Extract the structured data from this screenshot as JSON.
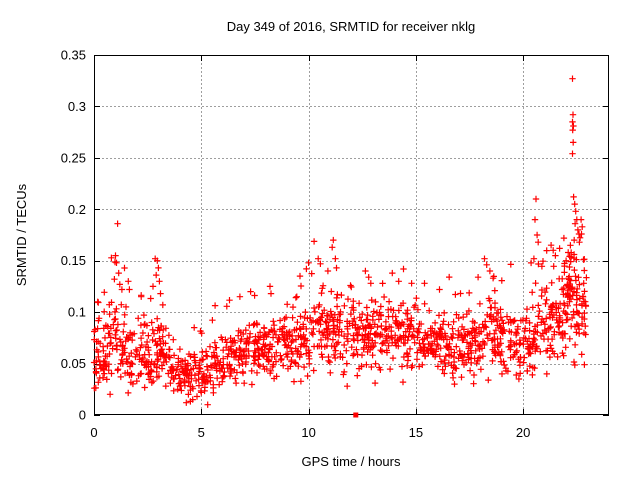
{
  "chart_data": {
    "type": "scatter",
    "title": "Day 349 of 2016, SRMTID for receiver nklg",
    "xlabel": "GPS time / hours",
    "ylabel": "SRMTID / TECUs",
    "xlim": [
      0,
      24
    ],
    "ylim": [
      0,
      0.35
    ],
    "xtick_values": [
      0,
      5,
      10,
      15,
      20
    ],
    "xtick_labels": [
      "0",
      "5",
      "10",
      "15",
      "20"
    ],
    "ytick_values": [
      0,
      0.05,
      0.1,
      0.15,
      0.2,
      0.25,
      0.3,
      0.35
    ],
    "ytick_labels": [
      "0",
      "0.05",
      "0.1",
      "0.15",
      "0.2",
      "0.25",
      "0.3",
      "0.35"
    ],
    "grid": true,
    "grid_style": "dashed",
    "legend": "none",
    "marker": {
      "shape": "plus",
      "color": "#ff0000",
      "size": 7
    },
    "series": [
      {
        "name": "SRMTID",
        "representation": "dense-noisy-scatter",
        "band_segments": [
          {
            "x_start": 0.0,
            "x_end": 0.7,
            "count": 55,
            "y_mean": 0.062,
            "y_spread": 0.03,
            "seed": 1,
            "tail": 1
          },
          {
            "x_start": 0.7,
            "x_end": 1.5,
            "count": 50,
            "y_mean": 0.068,
            "y_spread": 0.034,
            "seed": 2,
            "tail": 1
          },
          {
            "x_start": 1.5,
            "x_end": 2.7,
            "count": 75,
            "y_mean": 0.058,
            "y_spread": 0.028,
            "seed": 3,
            "tail": 1
          },
          {
            "x_start": 2.7,
            "x_end": 3.4,
            "count": 50,
            "y_mean": 0.055,
            "y_spread": 0.026,
            "seed": 4,
            "tail": 1
          },
          {
            "x_start": 3.4,
            "x_end": 5.6,
            "count": 130,
            "y_mean": 0.042,
            "y_spread": 0.02,
            "seed": 5,
            "tail": 1
          },
          {
            "x_start": 5.6,
            "x_end": 7.1,
            "count": 95,
            "y_mean": 0.056,
            "y_spread": 0.02,
            "seed": 6,
            "tail": 1
          },
          {
            "x_start": 7.1,
            "x_end": 8.6,
            "count": 95,
            "y_mean": 0.064,
            "y_spread": 0.022,
            "seed": 7,
            "tail": 1
          },
          {
            "x_start": 8.6,
            "x_end": 10.1,
            "count": 95,
            "y_mean": 0.07,
            "y_spread": 0.025,
            "seed": 8,
            "tail": 1
          },
          {
            "x_start": 10.1,
            "x_end": 11.6,
            "count": 95,
            "y_mean": 0.08,
            "y_spread": 0.03,
            "seed": 9,
            "tail": 1
          },
          {
            "x_start": 11.6,
            "x_end": 13.1,
            "count": 95,
            "y_mean": 0.078,
            "y_spread": 0.028,
            "seed": 10,
            "tail": 1
          },
          {
            "x_start": 13.1,
            "x_end": 15.1,
            "count": 125,
            "y_mean": 0.082,
            "y_spread": 0.026,
            "seed": 11,
            "tail": 1
          },
          {
            "x_start": 15.1,
            "x_end": 16.6,
            "count": 95,
            "y_mean": 0.072,
            "y_spread": 0.025,
            "seed": 12,
            "tail": 1
          },
          {
            "x_start": 16.6,
            "x_end": 18.1,
            "count": 95,
            "y_mean": 0.07,
            "y_spread": 0.026,
            "seed": 13,
            "tail": 1
          },
          {
            "x_start": 18.1,
            "x_end": 19.4,
            "count": 85,
            "y_mean": 0.075,
            "y_spread": 0.028,
            "seed": 14,
            "tail": 1
          },
          {
            "x_start": 19.4,
            "x_end": 20.7,
            "count": 85,
            "y_mean": 0.07,
            "y_spread": 0.026,
            "seed": 15,
            "tail": 1
          },
          {
            "x_start": 20.7,
            "x_end": 21.9,
            "count": 85,
            "y_mean": 0.09,
            "y_spread": 0.035,
            "seed": 16,
            "tail": 1
          },
          {
            "x_start": 21.9,
            "x_end": 22.95,
            "count": 100,
            "y_mean": 0.112,
            "y_spread": 0.045,
            "seed": 17,
            "tail": 0
          }
        ],
        "notable_points": [
          [
            1.1,
            0.186
          ],
          [
            1.0,
            0.155
          ],
          [
            1.05,
            0.148
          ],
          [
            1.15,
            0.138
          ],
          [
            0.95,
            0.132
          ],
          [
            1.2,
            0.127
          ],
          [
            1.3,
            0.122
          ],
          [
            1.6,
            0.13
          ],
          [
            1.65,
            0.122
          ],
          [
            2.2,
            0.115
          ],
          [
            2.85,
            0.152
          ],
          [
            2.95,
            0.15
          ],
          [
            3.0,
            0.143
          ],
          [
            2.9,
            0.136
          ],
          [
            3.05,
            0.13
          ],
          [
            2.75,
            0.125
          ],
          [
            3.1,
            0.118
          ],
          [
            3.9,
            0.025
          ],
          [
            4.3,
            0.012
          ],
          [
            4.4,
            0.02
          ],
          [
            4.6,
            0.015
          ],
          [
            4.8,
            0.018
          ],
          [
            5.0,
            0.022
          ],
          [
            5.3,
            0.01
          ],
          [
            6.8,
            0.115
          ],
          [
            7.3,
            0.12
          ],
          [
            8.2,
            0.125
          ],
          [
            8.25,
            0.118
          ],
          [
            9.6,
            0.135
          ],
          [
            9.9,
            0.142
          ],
          [
            10.0,
            0.148
          ],
          [
            10.45,
            0.152
          ],
          [
            10.55,
            0.147
          ],
          [
            10.9,
            0.14
          ],
          [
            11.1,
            0.163
          ],
          [
            11.15,
            0.17
          ],
          [
            11.25,
            0.152
          ],
          [
            11.3,
            0.143
          ],
          [
            11.8,
            0.028
          ],
          [
            12.65,
            0.14
          ],
          [
            12.8,
            0.134
          ],
          [
            12.9,
            0.128
          ],
          [
            13.1,
            0.031
          ],
          [
            13.9,
            0.138
          ],
          [
            14.2,
            0.13
          ],
          [
            14.4,
            0.032
          ],
          [
            15.4,
            0.128
          ],
          [
            16.1,
            0.122
          ],
          [
            16.8,
            0.03
          ],
          [
            17.9,
            0.134
          ],
          [
            18.2,
            0.152
          ],
          [
            18.3,
            0.146
          ],
          [
            18.45,
            0.14
          ],
          [
            18.6,
            0.133
          ],
          [
            19.8,
            0.035
          ],
          [
            20.5,
            0.152
          ],
          [
            20.55,
            0.19
          ],
          [
            20.6,
            0.21
          ],
          [
            20.65,
            0.175
          ],
          [
            20.7,
            0.168
          ],
          [
            21.1,
            0.04
          ],
          [
            21.5,
            0.155
          ],
          [
            21.7,
            0.162
          ],
          [
            21.9,
            0.172
          ],
          [
            22.0,
            0.15
          ],
          [
            22.1,
            0.158
          ],
          [
            22.2,
            0.165
          ],
          [
            22.3,
            0.327
          ],
          [
            22.32,
            0.292
          ],
          [
            22.3,
            0.285
          ],
          [
            22.34,
            0.281
          ],
          [
            22.31,
            0.277
          ],
          [
            22.33,
            0.265
          ],
          [
            22.3,
            0.254
          ],
          [
            22.35,
            0.212
          ],
          [
            22.38,
            0.17
          ],
          [
            22.4,
            0.205
          ],
          [
            22.42,
            0.186
          ],
          [
            22.45,
            0.198
          ],
          [
            22.5,
            0.19
          ],
          [
            22.55,
            0.18
          ],
          [
            22.6,
            0.176
          ],
          [
            22.62,
            0.168
          ],
          [
            22.7,
            0.19
          ],
          [
            22.72,
            0.176
          ],
          [
            22.75,
            0.183
          ]
        ]
      }
    ],
    "zero_axis_marker": {
      "x": 12.2,
      "y": 0,
      "shape": "filled-square",
      "color": "#ff0000",
      "size": 5
    }
  },
  "colors": {
    "marker": "#ff0000",
    "grid": "#9e9e9e",
    "axis": "#000000",
    "background": "#ffffff",
    "text": "#000000"
  }
}
